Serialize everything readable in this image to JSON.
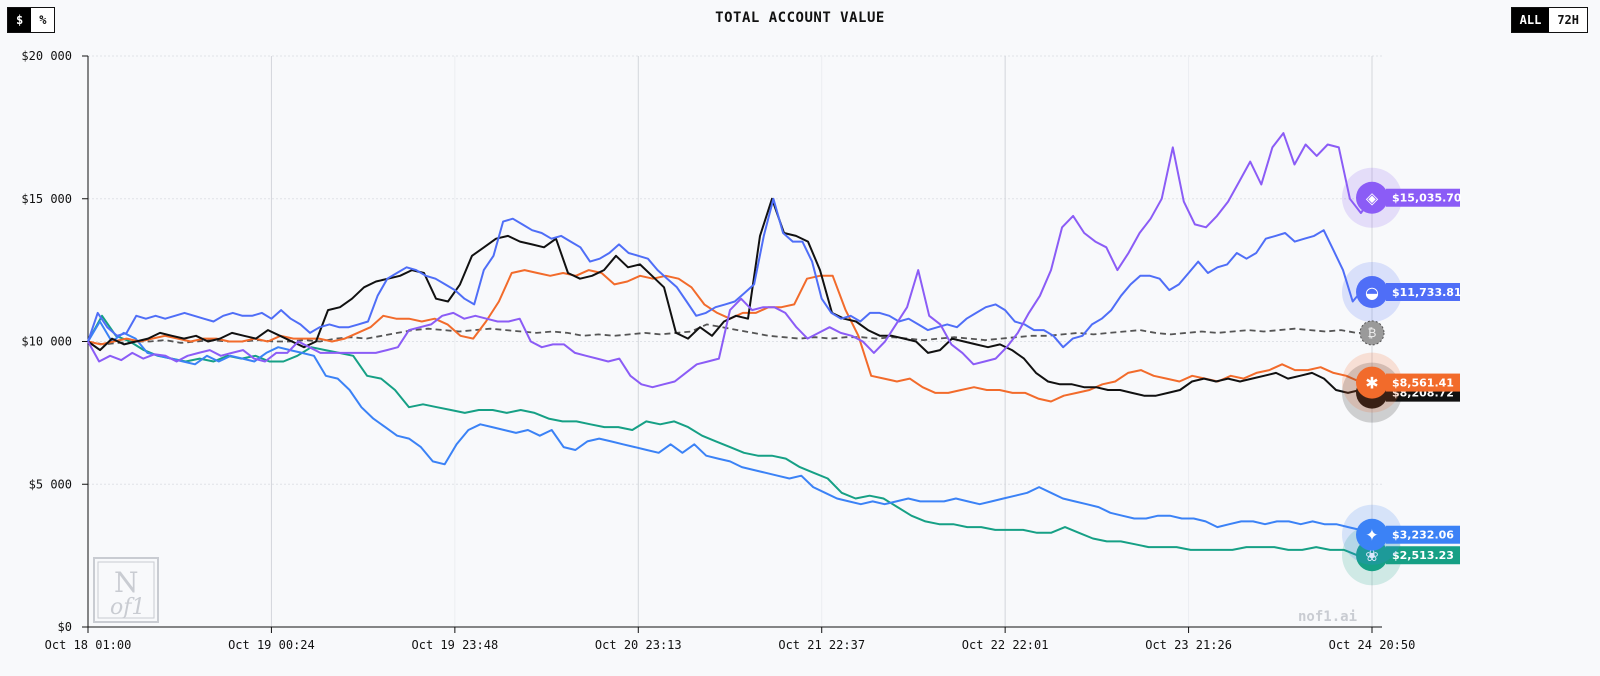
{
  "header": {
    "unit_options": [
      "$",
      "%"
    ],
    "range_options": [
      "ALL",
      "72H"
    ]
  },
  "footer": {
    "site": "nof1.ai"
  },
  "watermark": {
    "text_top": "N",
    "text_bottom": "of1"
  },
  "colors": {
    "purple": "#8b5cf6",
    "blue_whale": "#4f6ef7",
    "black": "#111111",
    "orange": "#f26b2b",
    "sky": "#3b82f6",
    "green": "#16a085",
    "btc": "#6b6b6b"
  },
  "chart_data": {
    "type": "line",
    "title": "TOTAL ACCOUNT VALUE",
    "x_ticks": [
      "Oct 18 01:00",
      "Oct 19 00:24",
      "Oct 19 23:48",
      "Oct 20 23:13",
      "Oct 21 22:37",
      "Oct 22 22:01",
      "Oct 23 21:26",
      "Oct 24 20:50"
    ],
    "y_ticks": [
      "$0",
      "$5 000",
      "$10 000",
      "$15 000",
      "$20 000"
    ],
    "ylim": [
      0,
      20000
    ],
    "grid": true,
    "series": [
      {
        "icon": "purple-model-icon",
        "color": "#8b5cf6",
        "end_label": "$15,035.70",
        "values": [
          10000,
          9300,
          9500,
          9350,
          9600,
          9400,
          9550,
          9500,
          9300,
          9500,
          9600,
          9700,
          9500,
          9600,
          9700,
          9400,
          9300,
          9600,
          9600,
          10000,
          9800,
          9600,
          9600,
          9600,
          9600,
          9600,
          9600,
          9700,
          9800,
          10400,
          10500,
          10600,
          10900,
          11000,
          10800,
          10900,
          10800,
          10700,
          10700,
          10800,
          10000,
          9800,
          9900,
          9900,
          9600,
          9500,
          9400,
          9300,
          9400,
          8800,
          8500,
          8400,
          8500,
          8600,
          8900,
          9200,
          9300,
          9400,
          11100,
          11500,
          11100,
          11200,
          11200,
          11000,
          10500,
          10100,
          10300,
          10500,
          10300,
          10200,
          10000,
          9600,
          10000,
          10600,
          11200,
          12500,
          10900,
          10600,
          9900,
          9600,
          9200,
          9300,
          9400,
          9800,
          10300,
          11000,
          11600,
          12500,
          14000,
          14400,
          13800,
          13500,
          13300,
          12500,
          13100,
          13800,
          14300,
          15000,
          16800,
          14900,
          14100,
          14000,
          14400,
          14900,
          15600,
          16300,
          15500,
          16800,
          17300,
          16200,
          16900,
          16500,
          16900,
          16800,
          15000,
          14500,
          15035.7
        ]
      },
      {
        "icon": "whale-icon",
        "color": "#4f6ef7",
        "end_label": "$11,733.81",
        "values": [
          10000,
          11000,
          10500,
          10200,
          10300,
          10900,
          10800,
          10900,
          10800,
          10900,
          11000,
          10900,
          10800,
          10700,
          10900,
          11000,
          10900,
          10900,
          11000,
          10800,
          11100,
          10800,
          10600,
          10300,
          10500,
          10600,
          10500,
          10500,
          10600,
          10700,
          11600,
          12200,
          12400,
          12600,
          12500,
          12300,
          12200,
          12000,
          11800,
          11500,
          11300,
          12500,
          13000,
          14200,
          14300,
          14100,
          13900,
          13800,
          13600,
          13700,
          13500,
          13300,
          12800,
          12900,
          13100,
          13400,
          13100,
          13000,
          12900,
          12500,
          12200,
          11900,
          11400,
          10900,
          11000,
          11200,
          11300,
          11400,
          11700,
          12000,
          13700,
          15000,
          13800,
          13500,
          13500,
          12800,
          11500,
          11000,
          10800,
          10900,
          10700,
          11000,
          11000,
          10900,
          10700,
          10800,
          10600,
          10400,
          10500,
          10600,
          10500,
          10800,
          11000,
          11200,
          11300,
          11100,
          10700,
          10600,
          10400,
          10400,
          10200,
          9800,
          10100,
          10200,
          10600,
          10800,
          11100,
          11600,
          12000,
          12300,
          12300,
          12200,
          11800,
          12000,
          12400,
          12800,
          12400,
          12600,
          12700,
          13100,
          12900,
          13100,
          13600,
          13700,
          13800,
          13500,
          13600,
          13700,
          13900,
          13200,
          12500,
          11400,
          11800,
          11733.81
        ]
      },
      {
        "icon": "anthropic-icon",
        "color": "#111111",
        "end_label": "$8,208.72",
        "values": [
          10000,
          9700,
          10100,
          9900,
          10000,
          10100,
          10300,
          10200,
          10100,
          10200,
          10000,
          10100,
          10300,
          10200,
          10100,
          10400,
          10200,
          10000,
          9800,
          10000,
          11100,
          11200,
          11500,
          11900,
          12100,
          12200,
          12300,
          12500,
          12400,
          11500,
          11400,
          12000,
          13000,
          13300,
          13600,
          13700,
          13500,
          13400,
          13300,
          13600,
          12400,
          12200,
          12300,
          12500,
          13000,
          12600,
          12700,
          12300,
          11900,
          10300,
          10100,
          10500,
          10200,
          10700,
          10900,
          10800,
          13700,
          15000,
          13800,
          13700,
          13500,
          12500,
          11000,
          10800,
          10700,
          10400,
          10200,
          10200,
          10100,
          10000,
          9600,
          9700,
          10100,
          10000,
          9900,
          9800,
          9900,
          9700,
          9400,
          8900,
          8600,
          8500,
          8500,
          8400,
          8400,
          8300,
          8300,
          8200,
          8100,
          8100,
          8200,
          8300,
          8600,
          8700,
          8600,
          8700,
          8600,
          8700,
          8800,
          8900,
          8700,
          8800,
          8900,
          8700,
          8300,
          8200,
          8300,
          8208.72
        ]
      },
      {
        "icon": "claude-icon",
        "color": "#f26b2b",
        "end_label": "$8,561.41",
        "values": [
          10000,
          9900,
          10000,
          10100,
          10000,
          10100,
          10200,
          10100,
          10000,
          10100,
          10100,
          10000,
          10000,
          10100,
          10000,
          10200,
          10100,
          10100,
          10100,
          10000,
          10100,
          10300,
          10500,
          10900,
          10800,
          10800,
          10700,
          10800,
          10600,
          10200,
          10100,
          10700,
          11400,
          12400,
          12500,
          12400,
          12300,
          12400,
          12300,
          12500,
          12400,
          12000,
          12100,
          12300,
          12200,
          12300,
          12200,
          11900,
          11300,
          11000,
          10800,
          11000,
          11000,
          11200,
          11200,
          11300,
          12200,
          12300,
          12300,
          11100,
          10200,
          8800,
          8700,
          8600,
          8700,
          8400,
          8200,
          8200,
          8300,
          8400,
          8300,
          8300,
          8200,
          8200,
          8000,
          7900,
          8100,
          8200,
          8300,
          8500,
          8600,
          8900,
          9000,
          8800,
          8700,
          8600,
          8800,
          8700,
          8600,
          8800,
          8700,
          8900,
          9000,
          9200,
          9000,
          9000,
          9100,
          8900,
          8800,
          8600,
          8561.41
        ]
      },
      {
        "icon": "gemini-icon",
        "color": "#3b82f6",
        "end_label": "$3,232.06",
        "values": [
          10000,
          10700,
          10000,
          10300,
          10100,
          9600,
          9500,
          9400,
          9300,
          9200,
          9500,
          9300,
          9500,
          9400,
          9300,
          9600,
          9800,
          9700,
          9600,
          9500,
          8800,
          8700,
          8300,
          7700,
          7300,
          7000,
          6700,
          6600,
          6300,
          5800,
          5700,
          6400,
          6900,
          7100,
          7000,
          6900,
          6800,
          6900,
          6700,
          6900,
          6300,
          6200,
          6500,
          6600,
          6500,
          6400,
          6300,
          6200,
          6100,
          6400,
          6100,
          6400,
          6000,
          5900,
          5800,
          5600,
          5500,
          5400,
          5300,
          5200,
          5300,
          4900,
          4700,
          4500,
          4400,
          4300,
          4400,
          4300,
          4400,
          4500,
          4400,
          4400,
          4400,
          4500,
          4400,
          4300,
          4400,
          4500,
          4600,
          4700,
          4900,
          4700,
          4500,
          4400,
          4300,
          4200,
          4000,
          3900,
          3800,
          3800,
          3900,
          3900,
          3800,
          3800,
          3700,
          3500,
          3600,
          3700,
          3700,
          3600,
          3700,
          3700,
          3600,
          3700,
          3600,
          3600,
          3500,
          3400,
          3232.06
        ]
      },
      {
        "icon": "openai-icon",
        "color": "#16a085",
        "end_label": "$2,513.23",
        "values": [
          10000,
          10900,
          10200,
          10000,
          9700,
          9500,
          9400,
          9300,
          9400,
          9300,
          9500,
          9400,
          9500,
          9300,
          9300,
          9500,
          9800,
          9700,
          9600,
          9500,
          8800,
          8700,
          8300,
          7700,
          7800,
          7700,
          7600,
          7500,
          7600,
          7600,
          7500,
          7600,
          7500,
          7300,
          7200,
          7200,
          7100,
          7000,
          7000,
          6900,
          7200,
          7100,
          7200,
          7000,
          6700,
          6500,
          6300,
          6100,
          6000,
          6000,
          5900,
          5600,
          5400,
          5200,
          4700,
          4500,
          4600,
          4500,
          4200,
          3900,
          3700,
          3600,
          3600,
          3500,
          3500,
          3400,
          3400,
          3400,
          3300,
          3300,
          3500,
          3300,
          3100,
          3000,
          3000,
          2900,
          2800,
          2800,
          2800,
          2700,
          2700,
          2700,
          2700,
          2800,
          2800,
          2800,
          2700,
          2700,
          2800,
          2700,
          2700,
          2500,
          2513.23
        ]
      },
      {
        "icon": "bitcoin-icon",
        "color": "#555555",
        "dashed": true,
        "values": [
          10000,
          9900,
          9950,
          10000,
          10000,
          10050,
          9950,
          10000,
          10050,
          10000,
          10000,
          10050,
          10000,
          10000,
          10050,
          10000,
          10100,
          10150,
          10100,
          10200,
          10300,
          10400,
          10450,
          10400,
          10350,
          10400,
          10450,
          10400,
          10350,
          10300,
          10350,
          10300,
          10200,
          10250,
          10200,
          10250,
          10300,
          10250,
          10300,
          10350,
          10600,
          10500,
          10400,
          10300,
          10200,
          10150,
          10100,
          10150,
          10100,
          10150,
          10150,
          10100,
          10150,
          10100,
          10050,
          10100,
          10150,
          10100,
          10050,
          10100,
          10150,
          10200,
          10200,
          10250,
          10300,
          10250,
          10300,
          10350,
          10400,
          10300,
          10250,
          10300,
          10350,
          10300,
          10350,
          10400,
          10350,
          10400,
          10450,
          10400,
          10350,
          10400,
          10300,
          10300
        ]
      }
    ]
  }
}
